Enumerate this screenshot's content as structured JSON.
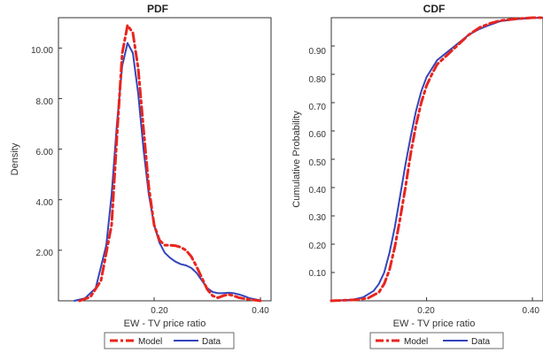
{
  "chart_data": [
    {
      "type": "line",
      "title": "PDF",
      "xlabel": "EW - TV price ratio",
      "ylabel": "Density",
      "xlim": [
        0.02,
        0.42
      ],
      "ylim": [
        0,
        11.2
      ],
      "x_ticks": [
        "0.20",
        "0.40"
      ],
      "y_ticks": [
        "2.00",
        "4.00",
        "6.00",
        "8.00",
        "10.00"
      ],
      "legend": {
        "placement": "bottom-center",
        "entries": [
          "Model",
          "Data"
        ]
      },
      "series": [
        {
          "name": "Model",
          "color": "#e8251e",
          "style": "dash-dot",
          "points": [
            [
              0.06,
              0
            ],
            [
              0.08,
              0.15
            ],
            [
              0.1,
              0.8
            ],
            [
              0.12,
              3.0
            ],
            [
              0.13,
              6.5
            ],
            [
              0.14,
              9.8
            ],
            [
              0.15,
              10.9
            ],
            [
              0.16,
              10.6
            ],
            [
              0.17,
              9.2
            ],
            [
              0.18,
              6.8
            ],
            [
              0.19,
              4.5
            ],
            [
              0.2,
              3.0
            ],
            [
              0.21,
              2.4
            ],
            [
              0.22,
              2.2
            ],
            [
              0.23,
              2.2
            ],
            [
              0.24,
              2.18
            ],
            [
              0.25,
              2.12
            ],
            [
              0.26,
              2.0
            ],
            [
              0.27,
              1.75
            ],
            [
              0.28,
              1.35
            ],
            [
              0.29,
              0.9
            ],
            [
              0.3,
              0.45
            ],
            [
              0.31,
              0.2
            ],
            [
              0.32,
              0.12
            ],
            [
              0.33,
              0.2
            ],
            [
              0.34,
              0.25
            ],
            [
              0.35,
              0.2
            ],
            [
              0.36,
              0.12
            ],
            [
              0.38,
              0.05
            ],
            [
              0.4,
              0
            ]
          ]
        },
        {
          "name": "Data",
          "color": "#3344bb",
          "style": "solid",
          "points": [
            [
              0.05,
              0
            ],
            [
              0.07,
              0.1
            ],
            [
              0.09,
              0.5
            ],
            [
              0.11,
              2.2
            ],
            [
              0.12,
              4.2
            ],
            [
              0.13,
              7.0
            ],
            [
              0.14,
              9.3
            ],
            [
              0.15,
              10.2
            ],
            [
              0.16,
              9.8
            ],
            [
              0.17,
              8.2
            ],
            [
              0.18,
              6.0
            ],
            [
              0.19,
              4.2
            ],
            [
              0.2,
              3.0
            ],
            [
              0.21,
              2.3
            ],
            [
              0.22,
              1.9
            ],
            [
              0.23,
              1.7
            ],
            [
              0.24,
              1.55
            ],
            [
              0.25,
              1.45
            ],
            [
              0.26,
              1.4
            ],
            [
              0.27,
              1.3
            ],
            [
              0.28,
              1.1
            ],
            [
              0.29,
              0.8
            ],
            [
              0.3,
              0.5
            ],
            [
              0.31,
              0.35
            ],
            [
              0.32,
              0.3
            ],
            [
              0.33,
              0.3
            ],
            [
              0.34,
              0.32
            ],
            [
              0.35,
              0.3
            ],
            [
              0.36,
              0.25
            ],
            [
              0.37,
              0.18
            ],
            [
              0.38,
              0.1
            ],
            [
              0.4,
              0.02
            ]
          ]
        }
      ]
    },
    {
      "type": "line",
      "title": "CDF",
      "xlabel": "EW - TV price ratio",
      "ylabel": "Cumulative Probability",
      "xlim": [
        0.02,
        0.42
      ],
      "ylim": [
        0,
        1.0
      ],
      "x_ticks": [
        "0.20",
        "0.40"
      ],
      "y_ticks": [
        "0.10",
        "0.20",
        "0.30",
        "0.40",
        "0.50",
        "0.60",
        "0.70",
        "0.80",
        "0.90"
      ],
      "legend": {
        "placement": "bottom-center",
        "entries": [
          "Model",
          "Data"
        ]
      },
      "series": [
        {
          "name": "Model",
          "color": "#e8251e",
          "style": "dash-dot",
          "points": [
            [
              0.02,
              0
            ],
            [
              0.07,
              0.004
            ],
            [
              0.09,
              0.01
            ],
            [
              0.11,
              0.03
            ],
            [
              0.12,
              0.06
            ],
            [
              0.13,
              0.11
            ],
            [
              0.14,
              0.19
            ],
            [
              0.15,
              0.29
            ],
            [
              0.16,
              0.4
            ],
            [
              0.17,
              0.52
            ],
            [
              0.18,
              0.62
            ],
            [
              0.19,
              0.7
            ],
            [
              0.2,
              0.76
            ],
            [
              0.21,
              0.8
            ],
            [
              0.22,
              0.835
            ],
            [
              0.24,
              0.87
            ],
            [
              0.26,
              0.905
            ],
            [
              0.28,
              0.94
            ],
            [
              0.3,
              0.965
            ],
            [
              0.32,
              0.98
            ],
            [
              0.34,
              0.99
            ],
            [
              0.37,
              0.996
            ],
            [
              0.4,
              1.0
            ],
            [
              0.42,
              1.0
            ]
          ]
        },
        {
          "name": "Data",
          "color": "#3344bb",
          "style": "solid",
          "points": [
            [
              0.02,
              0
            ],
            [
              0.06,
              0.004
            ],
            [
              0.08,
              0.012
            ],
            [
              0.1,
              0.035
            ],
            [
              0.11,
              0.06
            ],
            [
              0.12,
              0.1
            ],
            [
              0.13,
              0.17
            ],
            [
              0.14,
              0.26
            ],
            [
              0.15,
              0.37
            ],
            [
              0.16,
              0.48
            ],
            [
              0.17,
              0.58
            ],
            [
              0.18,
              0.67
            ],
            [
              0.19,
              0.74
            ],
            [
              0.2,
              0.79
            ],
            [
              0.21,
              0.82
            ],
            [
              0.22,
              0.85
            ],
            [
              0.24,
              0.88
            ],
            [
              0.26,
              0.91
            ],
            [
              0.28,
              0.94
            ],
            [
              0.3,
              0.96
            ],
            [
              0.32,
              0.975
            ],
            [
              0.34,
              0.988
            ],
            [
              0.37,
              0.995
            ],
            [
              0.4,
              0.999
            ],
            [
              0.42,
              1.0
            ]
          ]
        }
      ]
    }
  ]
}
